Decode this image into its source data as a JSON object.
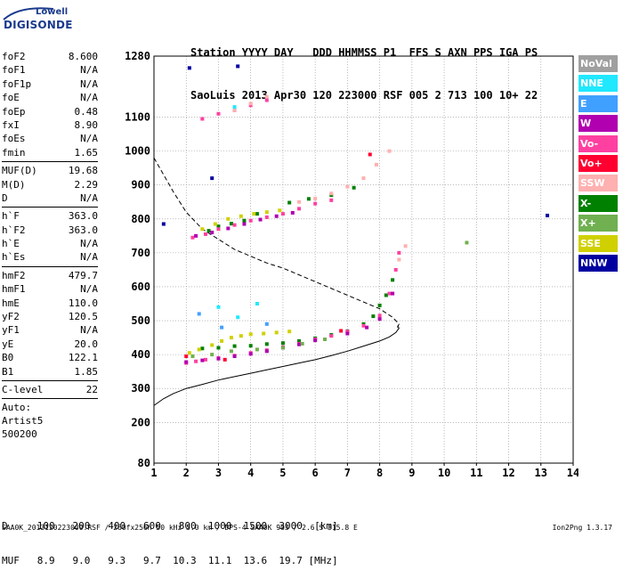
{
  "logo": {
    "line1": "Lowell",
    "line2": "DIGISONDE"
  },
  "header": {
    "line1": [
      "Station",
      "YYYY",
      "DAY",
      "DDD",
      "HHMMSS",
      "P1",
      "FFS",
      "S",
      "AXN",
      "PPS",
      "IGA",
      "PS"
    ],
    "line2": [
      "SaoLuis",
      "2013",
      "Apr30",
      "120",
      "223000",
      "RSF",
      "005",
      "2",
      "713",
      "100",
      "10+",
      "22"
    ]
  },
  "params": {
    "group1": [
      {
        "label": "foF2",
        "value": "8.600"
      },
      {
        "label": "foF1",
        "value": "N/A"
      },
      {
        "label": "foF1p",
        "value": "N/A"
      },
      {
        "label": "foE",
        "value": "N/A"
      },
      {
        "label": "foEp",
        "value": "0.48"
      },
      {
        "label": "fxI",
        "value": "8.90"
      },
      {
        "label": "foEs",
        "value": "N/A"
      },
      {
        "label": "fmin",
        "value": "1.65"
      }
    ],
    "group2": [
      {
        "label": "MUF(D)",
        "value": "19.68"
      },
      {
        "label": "M(D)",
        "value": "2.29"
      },
      {
        "label": "D",
        "value": "N/A"
      }
    ],
    "group3": [
      {
        "label": "h`F",
        "value": "363.0"
      },
      {
        "label": "h`F2",
        "value": "363.0"
      },
      {
        "label": "h`E",
        "value": "N/A"
      },
      {
        "label": "h`Es",
        "value": "N/A"
      }
    ],
    "group4": [
      {
        "label": "hmF2",
        "value": "479.7"
      },
      {
        "label": "hmF1",
        "value": "N/A"
      },
      {
        "label": "hmE",
        "value": "110.0"
      },
      {
        "label": "yF2",
        "value": "120.5"
      },
      {
        "label": "yF1",
        "value": "N/A"
      },
      {
        "label": "yE",
        "value": "20.0"
      },
      {
        "label": "B0",
        "value": "122.1"
      },
      {
        "label": "B1",
        "value": "1.85"
      }
    ],
    "group5": [
      {
        "label": "C-level",
        "value": "22"
      }
    ],
    "auto_label": "Auto:",
    "artist": "Artist5",
    "code": "500200"
  },
  "legend": [
    {
      "name": "NoVal",
      "color": "#a0a0a0"
    },
    {
      "name": "NNE",
      "color": "#20e8ff"
    },
    {
      "name": "E",
      "color": "#40a0ff"
    },
    {
      "name": "W",
      "color": "#b000b0"
    },
    {
      "name": "Vo-",
      "color": "#ff40a0"
    },
    {
      "name": "Vo+",
      "color": "#ff0030"
    },
    {
      "name": "SSW",
      "color": "#ffb0b0"
    },
    {
      "name": "X-",
      "color": "#008000"
    },
    {
      "name": "X+",
      "color": "#70b050"
    },
    {
      "name": "SSE",
      "color": "#d0d000"
    },
    {
      "name": "NNW",
      "color": "#0000a0"
    }
  ],
  "dmuf": {
    "d_label": "D",
    "d_values": [
      "100",
      "200",
      "400",
      "600",
      "800",
      "1000",
      "1500",
      "3000",
      "[km]"
    ],
    "muf_label": "MUF",
    "muf_values": [
      "8.9",
      "9.0",
      "9.3",
      "9.7",
      "10.3",
      "11.1",
      "13.6",
      "19.7",
      "[MHz]"
    ]
  },
  "footer": "SAA0K_2013120223000.RSF / 260fx256h 50 kHz 5.0 km / DPS-4 SAA0K 903 / 2.6 S 315.8 E",
  "version": "Ion2Png 1.3.17",
  "chart_data": {
    "type": "scatter",
    "x_ticks": [
      1,
      2,
      3,
      4,
      5,
      6,
      7,
      8,
      9,
      10,
      11,
      12,
      13,
      14
    ],
    "y_ticks": [
      80,
      200,
      300,
      400,
      500,
      600,
      700,
      800,
      900,
      1000,
      1100,
      1280
    ],
    "xlim": [
      1,
      14
    ],
    "ylim": [
      80,
      1280
    ],
    "grid": true,
    "legend_placement": "right",
    "series": [
      {
        "name": "X-",
        "color": "#008000",
        "x": [
          2.5,
          3.0,
          3.5,
          4.0,
          4.5,
          5.0,
          5.5,
          6.0,
          6.5,
          7.0,
          7.5,
          7.8,
          8.0,
          8.2,
          8.4,
          2.7,
          3.0,
          3.4,
          3.8,
          4.2,
          5.2,
          5.8,
          6.5,
          7.2
        ],
        "y": [
          418,
          420,
          425,
          426,
          431,
          434,
          440,
          448,
          458,
          469,
          490,
          513,
          545,
          575,
          620,
          765,
          778,
          786,
          795,
          815,
          848,
          859,
          870,
          892
        ]
      },
      {
        "name": "Vo-",
        "color": "#ff40a0",
        "x": [
          2.0,
          2.3,
          2.6,
          3.0,
          3.5,
          4.0,
          4.5,
          5.0,
          5.5,
          6.0,
          6.5,
          7.0,
          7.5,
          8.0,
          8.3,
          8.5,
          8.6,
          2.2,
          2.6,
          3.0,
          3.5,
          4.0,
          4.5,
          5.0,
          5.5,
          6.0,
          6.5,
          2.5,
          3.0,
          3.5,
          4.0,
          4.5
        ],
        "y": [
          375,
          380,
          385,
          390,
          397,
          405,
          413,
          422,
          432,
          445,
          455,
          468,
          485,
          515,
          580,
          650,
          700,
          745,
          755,
          770,
          782,
          795,
          805,
          815,
          830,
          845,
          855,
          1095,
          1110,
          1120,
          1135,
          1150
        ]
      },
      {
        "name": "W",
        "color": "#b000b0",
        "x": [
          2.0,
          2.5,
          3.0,
          3.5,
          4.0,
          4.5,
          5.0,
          5.5,
          6.0,
          7.0,
          7.6,
          8.0,
          8.4,
          2.3,
          2.8,
          3.3,
          3.8,
          4.3,
          4.8,
          5.3
        ],
        "y": [
          378,
          383,
          388,
          395,
          402,
          410,
          420,
          430,
          442,
          462,
          480,
          505,
          580,
          750,
          760,
          772,
          785,
          798,
          808,
          818
        ]
      },
      {
        "name": "SSE",
        "color": "#d0d000",
        "x": [
          2.1,
          2.4,
          2.8,
          3.1,
          3.4,
          3.7,
          4.0,
          4.4,
          4.8,
          5.2,
          2.5,
          2.9,
          3.3,
          3.7,
          4.1,
          4.5,
          4.9
        ],
        "y": [
          405,
          415,
          428,
          440,
          450,
          455,
          460,
          462,
          465,
          468,
          770,
          785,
          800,
          808,
          815,
          820,
          825
        ]
      },
      {
        "name": "SSW",
        "color": "#ffb0b0",
        "x": [
          5.5,
          6.0,
          6.5,
          7.0,
          7.5,
          7.9,
          8.3,
          8.6,
          8.8,
          3.5,
          4.0,
          4.5
        ],
        "y": [
          850,
          860,
          875,
          895,
          920,
          960,
          1000,
          680,
          720,
          1120,
          1140,
          1160
        ]
      },
      {
        "name": "X+",
        "color": "#70b050",
        "x": [
          2.2,
          2.8,
          3.4,
          4.2,
          5.0,
          5.6,
          6.3,
          10.7
        ],
        "y": [
          395,
          400,
          410,
          415,
          420,
          432,
          445,
          730
        ]
      },
      {
        "name": "NNE",
        "color": "#20e8ff",
        "x": [
          3.0,
          3.6,
          4.2,
          3.5
        ],
        "y": [
          540,
          510,
          550,
          1130
        ]
      },
      {
        "name": "E",
        "color": "#40a0ff",
        "x": [
          2.4,
          3.1,
          4.5
        ],
        "y": [
          520,
          480,
          490
        ]
      },
      {
        "name": "NNW",
        "color": "#0000a0",
        "x": [
          1.3,
          2.1,
          3.6,
          2.8,
          13.2
        ],
        "y": [
          785,
          1245,
          1250,
          920,
          810
        ]
      },
      {
        "name": "Vo+",
        "color": "#ff0030",
        "x": [
          2.0,
          3.2,
          6.8,
          7.7
        ],
        "y": [
          395,
          385,
          470,
          990
        ]
      }
    ],
    "profile_line": {
      "x": [
        1.0,
        1.3,
        1.6,
        2.0,
        2.5,
        3.0,
        3.5,
        4.0,
        4.5,
        5.0,
        5.5,
        6.0,
        6.5,
        7.0,
        7.5,
        8.0,
        8.3,
        8.5,
        8.6,
        8.55
      ],
      "y": [
        250,
        270,
        285,
        300,
        312,
        325,
        335,
        345,
        355,
        365,
        375,
        385,
        397,
        410,
        425,
        440,
        452,
        465,
        478,
        485
      ]
    },
    "muf_curve": {
      "x": [
        1.0,
        1.3,
        1.6,
        2.0,
        2.5,
        3.0,
        3.5,
        4.0,
        4.5,
        5.0,
        5.5,
        6.0,
        6.5,
        7.0,
        7.5,
        8.0,
        8.4,
        8.6,
        8.55
      ],
      "y": [
        980,
        930,
        880,
        820,
        770,
        740,
        710,
        690,
        670,
        655,
        635,
        615,
        595,
        575,
        555,
        535,
        510,
        490,
        480
      ]
    }
  }
}
